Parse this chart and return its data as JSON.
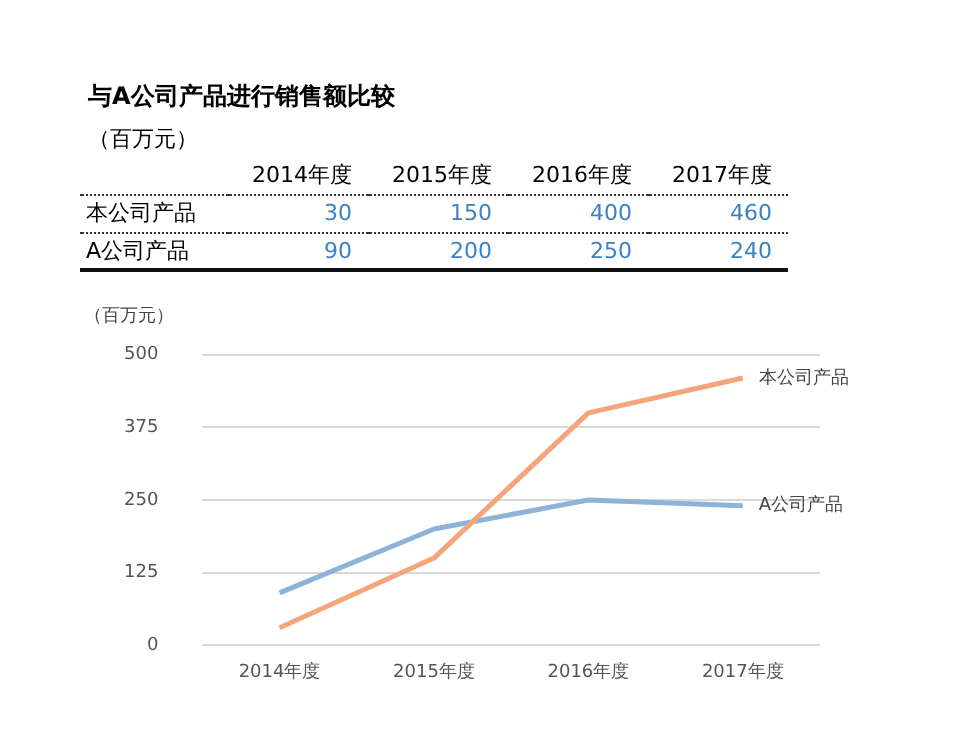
{
  "chart_data": {
    "type": "line",
    "title": "与A公司产品进行销售额比较",
    "subtitle": "（百万元）",
    "ylabel": "（百万元）",
    "categories": [
      "2014年度",
      "2015年度",
      "2016年度",
      "2017年度"
    ],
    "series": [
      {
        "name": "本公司产品",
        "color": "#f4a57c",
        "values": [
          30,
          150,
          400,
          460
        ]
      },
      {
        "name": "A公司产品",
        "color": "#8db4d8",
        "values": [
          90,
          200,
          250,
          240
        ]
      }
    ],
    "ylim": [
      0,
      500
    ],
    "yticks": [
      0,
      125,
      250,
      375,
      500
    ],
    "grid": "y",
    "data_labels": true
  }
}
